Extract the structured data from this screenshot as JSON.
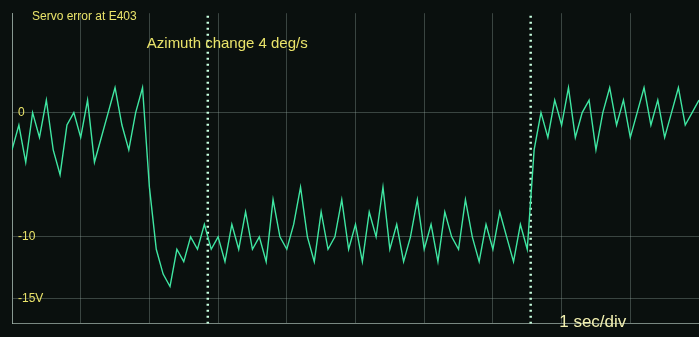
{
  "chart_data": {
    "type": "line",
    "title": "Servo error at E403",
    "annotations": [
      {
        "text": "Azimuth change 4 deg/s"
      },
      {
        "text": "1 sec/div"
      }
    ],
    "x": [
      0,
      0.1,
      0.2,
      0.3,
      0.4,
      0.5,
      0.6,
      0.7,
      0.8,
      0.9,
      1,
      1.1,
      1.2,
      1.3,
      1.4,
      1.5,
      1.6,
      1.7,
      1.8,
      1.9,
      2,
      2.1,
      2.2,
      2.3,
      2.4,
      2.5,
      2.6,
      2.7,
      2.8,
      2.9,
      3,
      3.1,
      3.2,
      3.3,
      3.4,
      3.5,
      3.6,
      3.7,
      3.8,
      3.9,
      4,
      4.1,
      4.2,
      4.3,
      4.4,
      4.5,
      4.6,
      4.7,
      4.8,
      4.9,
      5,
      5.1,
      5.2,
      5.3,
      5.4,
      5.5,
      5.6,
      5.7,
      5.8,
      5.9,
      6,
      6.1,
      6.2,
      6.3,
      6.4,
      6.5,
      6.6,
      6.7,
      6.8,
      6.9,
      7,
      7.1,
      7.2,
      7.3,
      7.4,
      7.5,
      7.6,
      7.7,
      7.8,
      7.9,
      8,
      8.1,
      8.2,
      8.3,
      8.4,
      8.5,
      8.6,
      8.7,
      8.8,
      8.9,
      9,
      9.1,
      9.2,
      9.3,
      9.4,
      9.5,
      9.6,
      9.7,
      9.8,
      9.9,
      10
    ],
    "values": [
      -3,
      -1,
      -4,
      0,
      -2,
      1,
      -3,
      -5,
      -1,
      0,
      -2,
      1,
      -4,
      -2,
      0,
      2,
      -1,
      -3,
      0,
      2,
      -6,
      -11,
      -13,
      -14,
      -11,
      -12,
      -10,
      -11,
      -9,
      -11,
      -10,
      -12,
      -9,
      -11,
      -8,
      -11,
      -10,
      -12,
      -7,
      -10,
      -11,
      -9,
      -6,
      -10,
      -12,
      -8,
      -11,
      -10,
      -7,
      -11,
      -9,
      -12,
      -8,
      -10,
      -6,
      -11,
      -9,
      -12,
      -10,
      -7,
      -11,
      -9,
      -12,
      -8,
      -10,
      -11,
      -7,
      -10,
      -12,
      -9,
      -11,
      -8,
      -10,
      -12,
      -9,
      -11,
      -3,
      0,
      -2,
      1,
      -1,
      2,
      -2,
      0,
      1,
      -3,
      0,
      2,
      -1,
      1,
      -2,
      0,
      2,
      -1,
      1,
      -2,
      0,
      2,
      -1,
      0,
      1
    ],
    "vertical_lines": [
      2.85,
      7.55
    ],
    "color": "#3fe6a2",
    "marker": "none",
    "line_style": "solid",
    "xlim": [
      0,
      10
    ],
    "xticks": [
      0,
      1,
      2,
      3,
      4,
      5,
      6,
      7,
      8,
      9,
      10
    ],
    "ylim": [
      -17,
      8
    ],
    "yticks": [
      {
        "value": -15,
        "label": "-15V"
      },
      -10,
      0
    ],
    "grid": true,
    "tick_labels": "y"
  }
}
